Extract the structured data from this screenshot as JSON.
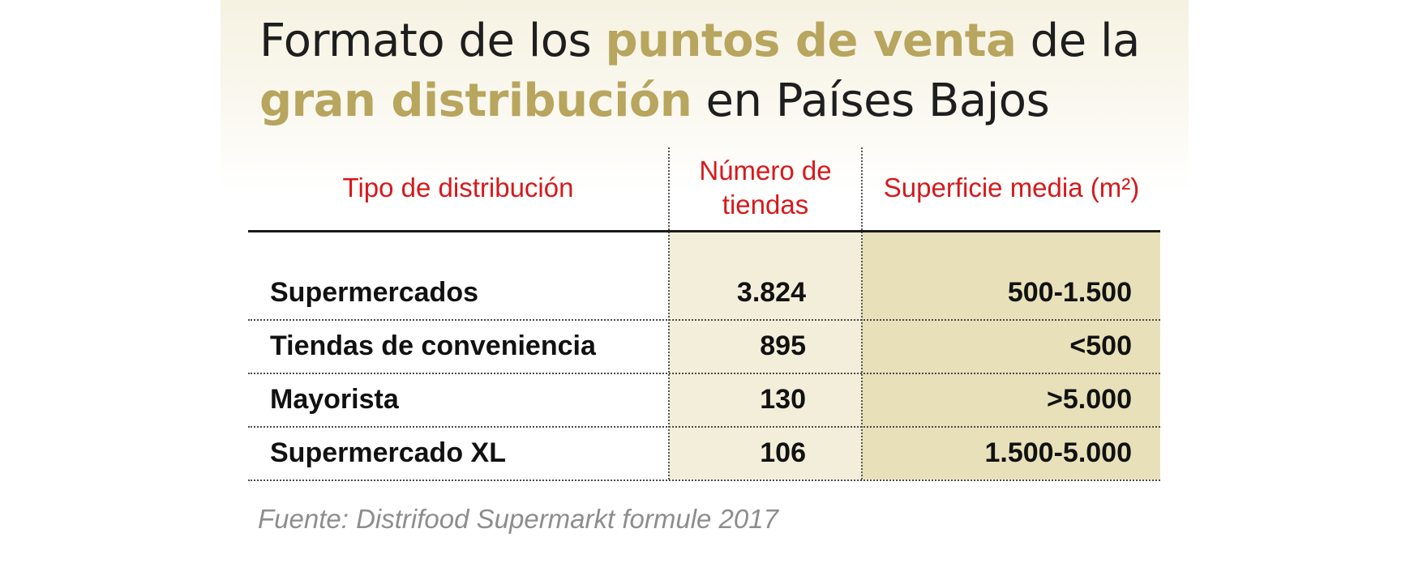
{
  "title": {
    "part1": "Formato de los ",
    "part2": "puntos de venta",
    "part3": " de la",
    "part4": "gran distribución",
    "part5": " en Países Bajos"
  },
  "accent_color": "#b8a55e",
  "header_color": "#d6191b",
  "chart_data": {
    "type": "table",
    "columns": [
      "Tipo de distribución",
      "Número de tiendas",
      "Superficie media (m²)"
    ],
    "rows": [
      {
        "tipo": "Supermercados",
        "numero": "3.824",
        "superficie": "500-1.500"
      },
      {
        "tipo": "Tiendas de conveniencia",
        "numero": "895",
        "superficie": "<500"
      },
      {
        "tipo": "Mayorista",
        "numero": "130",
        "superficie": ">5.000"
      },
      {
        "tipo": "Supermercado XL",
        "numero": "106",
        "superficie": "1.500-5.000"
      }
    ]
  },
  "source": "Fuente: Distrifood Supermarkt formule 2017"
}
